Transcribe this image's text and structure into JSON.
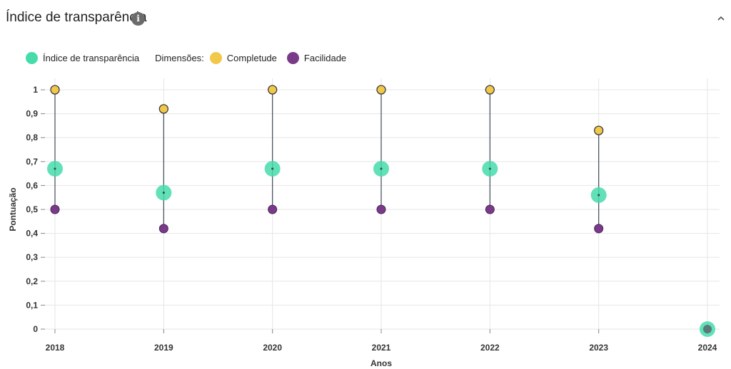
{
  "header": {
    "title": "Índice de transparência",
    "info_icon": "info-icon",
    "collapse_icon": "chevron-up-icon"
  },
  "legend": {
    "index_label": "Índice de transparência",
    "dimensions_label": "Dimensões:",
    "completude_label": "Completude",
    "facilidade_label": "Facilidade"
  },
  "colors": {
    "index": "#46dbaa",
    "completude": "#f2c84b",
    "facilidade": "#7a3a8a",
    "connector": "#3d4a5c",
    "grid": "#e6e6e6"
  },
  "chart_data": {
    "type": "scatter",
    "xlabel": "Anos",
    "ylabel": "Pontuação",
    "ylim": [
      0,
      1
    ],
    "y_ticks": [
      "0",
      "0,1",
      "0,2",
      "0,3",
      "0,4",
      "0,5",
      "0,6",
      "0,7",
      "0,8",
      "0,9",
      "1"
    ],
    "categories": [
      "2018",
      "2019",
      "2020",
      "2021",
      "2022",
      "2023",
      "2024"
    ],
    "series": [
      {
        "name": "Índice de transparência",
        "values": [
          0.67,
          0.57,
          0.67,
          0.67,
          0.67,
          0.56,
          0
        ]
      },
      {
        "name": "Completude",
        "values": [
          1,
          0.92,
          1,
          1,
          1,
          0.83,
          null
        ]
      },
      {
        "name": "Facilidade",
        "values": [
          0.5,
          0.42,
          0.5,
          0.5,
          0.5,
          0.42,
          null
        ]
      }
    ],
    "grid": true,
    "legend_position": "top-left"
  }
}
